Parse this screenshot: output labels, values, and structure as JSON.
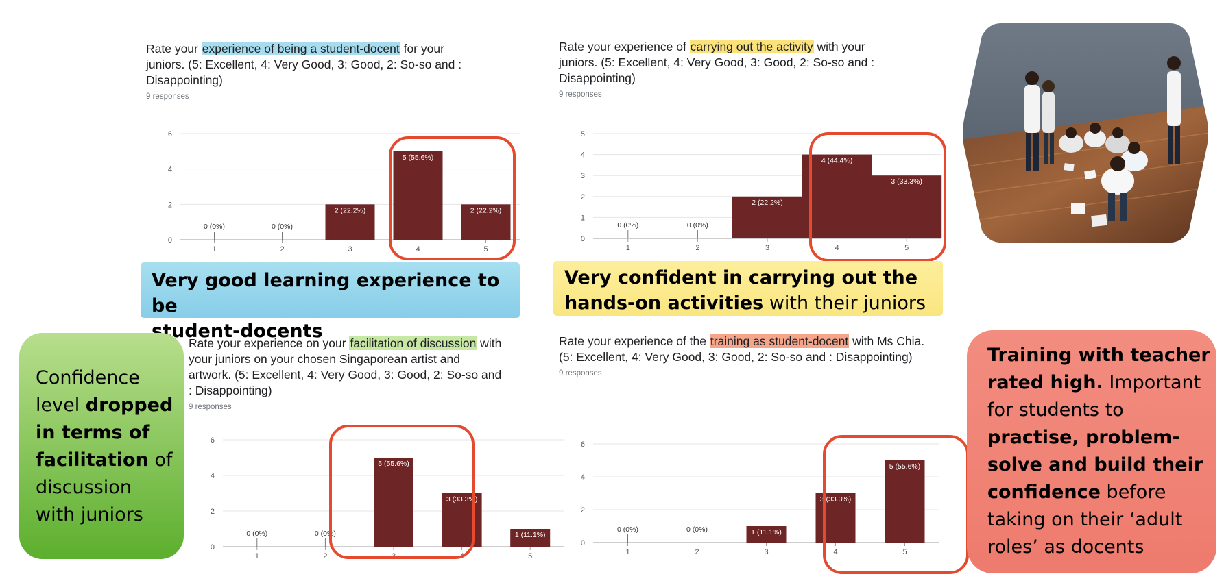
{
  "colors": {
    "bar": "#6e2525",
    "grid": "#e6e6e6",
    "axis": "#9e9e9e",
    "highlight_box": "#e64a2e",
    "blue": "#9ad7ea",
    "yellow": "#fbe889",
    "green_top": "#b4dc86",
    "green_bottom": "#5cad2c",
    "red_callout": "#ef8174"
  },
  "panels": [
    {
      "id": "p1",
      "q_before": "Rate your ",
      "q_highlight": "experience of being a student-docent",
      "q_after": " for your juniors. (5: Excellent, 4: Very Good, 3: Good, 2: So-so and : Disappointing)",
      "highlight_color": "#a7dcef",
      "responses": "9 responses"
    },
    {
      "id": "p2",
      "q_before": "Rate your experience of ",
      "q_highlight": "carrying out the activity",
      "q_after": " with your juniors. (5: Excellent, 4: Very Good, 3: Good, 2: So-so and : Disappointing)",
      "highlight_color": "#fbe27a",
      "responses": "9 responses"
    },
    {
      "id": "p3",
      "q_before": "Rate your experience on your ",
      "q_highlight": "facilitation of discussion",
      "q_after": " with your juniors on your chosen Singaporean artist and artwork. (5: Excellent, 4: Very Good, 3: Good, 2: So-so and : Disappointing)",
      "highlight_color": "#c7e7a5",
      "responses": "9 responses"
    },
    {
      "id": "p4",
      "q_before": "Rate your experience of the ",
      "q_highlight": "training as student-docent",
      "q_after": " with Ms Chia. (5: Excellent, 4: Very Good, 3: Good, 2: So-so and : Disappointing)",
      "highlight_color": "#f5a68a",
      "responses": "9 responses"
    }
  ],
  "chart_data": [
    {
      "type": "bar",
      "categories": [
        "1",
        "2",
        "3",
        "4",
        "5"
      ],
      "values": [
        0,
        0,
        2,
        5,
        2
      ],
      "data_labels": [
        "0 (0%)",
        "0 (0%)",
        "2 (22.2%)",
        "5 (55.6%)",
        "2 (22.2%)"
      ],
      "yticks": [
        0,
        2,
        4,
        6
      ],
      "ylim": [
        0,
        6
      ],
      "grid": true
    },
    {
      "type": "bar",
      "categories": [
        "1",
        "2",
        "3",
        "4",
        "5"
      ],
      "values": [
        0,
        0,
        2,
        4,
        3
      ],
      "data_labels": [
        "0 (0%)",
        "0 (0%)",
        "2 (22.2%)",
        "4 (44.4%)",
        "3 (33.3%)"
      ],
      "yticks": [
        0,
        1,
        2,
        3,
        4,
        5
      ],
      "ylim": [
        0,
        5
      ],
      "grid": true
    },
    {
      "type": "bar",
      "categories": [
        "1",
        "2",
        "3",
        "4",
        "5"
      ],
      "values": [
        0,
        0,
        5,
        3,
        1
      ],
      "data_labels": [
        "0 (0%)",
        "0 (0%)",
        "5 (55.6%)",
        "3 (33.3%)",
        "1 (11.1%)"
      ],
      "yticks": [
        0,
        2,
        4,
        6
      ],
      "ylim": [
        0,
        6
      ],
      "grid": true
    },
    {
      "type": "bar",
      "categories": [
        "1",
        "2",
        "3",
        "4",
        "5"
      ],
      "values": [
        0,
        0,
        1,
        3,
        5
      ],
      "data_labels": [
        "0 (0%)",
        "0 (0%)",
        "1 (11.1%)",
        "3 (33.3%)",
        "5 (55.6%)"
      ],
      "yticks": [
        0,
        2,
        4,
        6
      ],
      "ylim": [
        0,
        6
      ],
      "grid": true
    }
  ],
  "callouts": {
    "blue": {
      "line1_bold": "Very good learning experience to be",
      "line2_bold": "student-docents"
    },
    "yellow": {
      "line1_bold": "Very confident in carrying out the",
      "line2_bold": "hands-on activities",
      "line2_regular": " with their juniors"
    },
    "green": {
      "t1": "Confidence",
      "t2": "level ",
      "t2b": "dropped",
      "t3b": "in terms of",
      "t4b": "facilitation",
      "t4": " of",
      "t5": "discussion",
      "t6": "with juniors"
    },
    "red": {
      "t1b": "Training with teacher",
      "t2b": "rated high.",
      "t2": " Important",
      "t3": "for students to",
      "t4b": "practise, problem-",
      "t5b": "solve and build their",
      "t6b": "confidence",
      "t6": " before",
      "t7": "taking on their ‘adult",
      "t8": "roles’ as docents"
    }
  }
}
